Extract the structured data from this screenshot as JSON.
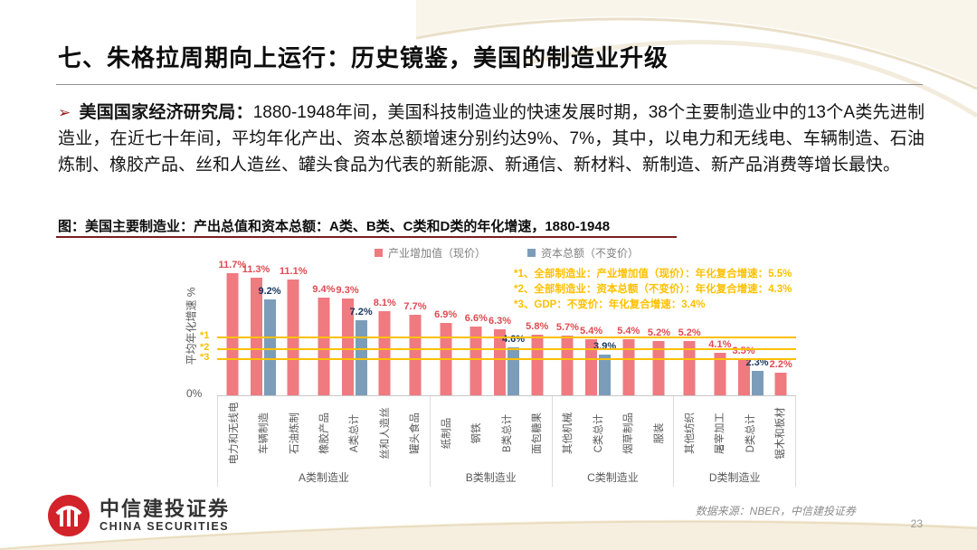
{
  "slide": {
    "title": "七、朱格拉周期向上运行：历史镜鉴，美国的制造业升级",
    "paragraph": {
      "bullet": "➢",
      "lead": "美国国家经济研究局：",
      "body": "1880-1948年间，美国科技制造业的快速发展时期，38个主要制造业中的13个A类先进制造业，在近七十年间，平均年化产出、资本总额增速分别约达9%、7%，其中，以电力和无线电、车辆制造、石油炼制、橡胶产品、丝和人造丝、罐头食品为代表的新能源、新通信、新材料、新制造、新产品消费等增长最快。"
    },
    "chart_title": "图：美国主要制造业：产出总值和资本总额：A类、B类、C类和D类的年化增速，1880-1948",
    "footer": {
      "logo_cn": "中信建投证券",
      "logo_en": "CHINA SECURITIES",
      "source": "数据来源：NBER，中信建投证券",
      "page": "23"
    }
  },
  "chart_data": {
    "type": "bar",
    "title": "美国主要制造业：产出总值和资本总额：A类、B类、C类和D类的年化增速，1880-1948",
    "ylabel": "平均年化增速 %",
    "y_axis_zero_label": "0%",
    "ylim": [
      0,
      13
    ],
    "grid": false,
    "legend_position": "top-center",
    "legend": [
      {
        "label": "产业增加值（现价）",
        "color": "#EF7A80"
      },
      {
        "label": "资本总额（不变价）",
        "color": "#7C9DB9"
      }
    ],
    "colors": {
      "bar_output": "#EF7A80",
      "bar_capital": "#7C9DB9",
      "label_output": "#E04A50",
      "label_capital": "#17375E",
      "refline": "#FFC000"
    },
    "groups": [
      {
        "name": "A类制造业",
        "items": [
          {
            "label": "电力和无线电",
            "output": 11.7,
            "capital": null
          },
          {
            "label": "车辆制造",
            "output": 11.3,
            "capital": 9.2
          },
          {
            "label": "石油炼制",
            "output": 11.1,
            "capital": null
          },
          {
            "label": "橡胶产品",
            "output": 9.4,
            "capital": null
          },
          {
            "label": "A类总计",
            "output": 9.3,
            "capital": 7.2
          },
          {
            "label": "丝和人造丝",
            "output": 8.1,
            "capital": null
          },
          {
            "label": "罐头食品",
            "output": 7.7,
            "capital": null
          }
        ]
      },
      {
        "name": "B类制造业",
        "items": [
          {
            "label": "纸制品",
            "output": 6.9,
            "capital": null
          },
          {
            "label": "钢铁",
            "output": 6.6,
            "capital": null
          },
          {
            "label": "B类总计",
            "output": 6.3,
            "capital": 4.6
          },
          {
            "label": "面包糖果",
            "output": 5.8,
            "capital": null
          }
        ]
      },
      {
        "name": "C类制造业",
        "items": [
          {
            "label": "其他机械",
            "output": 5.7,
            "capital": null
          },
          {
            "label": "C类总计",
            "output": 5.4,
            "capital": 3.9
          },
          {
            "label": "烟草制品",
            "output": 5.4,
            "capital": null
          },
          {
            "label": "服装",
            "output": 5.2,
            "capital": null
          }
        ]
      },
      {
        "name": "D类制造业",
        "items": [
          {
            "label": "其他纺织",
            "output": 5.2,
            "capital": null
          },
          {
            "label": "屠宰加工",
            "output": 4.1,
            "capital": null
          },
          {
            "label": "D类总计",
            "output": 3.5,
            "capital": 2.3
          },
          {
            "label": "锯木和板材",
            "output": 2.2,
            "capital": null
          }
        ]
      }
    ],
    "reference_lines": [
      {
        "tag": "*1",
        "value": 5.5
      },
      {
        "tag": "*2",
        "value": 4.3
      },
      {
        "tag": "*3",
        "value": 3.4
      }
    ],
    "annotations": [
      "*1、全部制造业：产业增加值（现价）：年化复合增速：5.5%",
      "*2、全部制造业：资本总额（不变价）：年化复合增速：4.3%",
      "*3、GDP：不变价：年化复合增速：3.4%"
    ]
  }
}
